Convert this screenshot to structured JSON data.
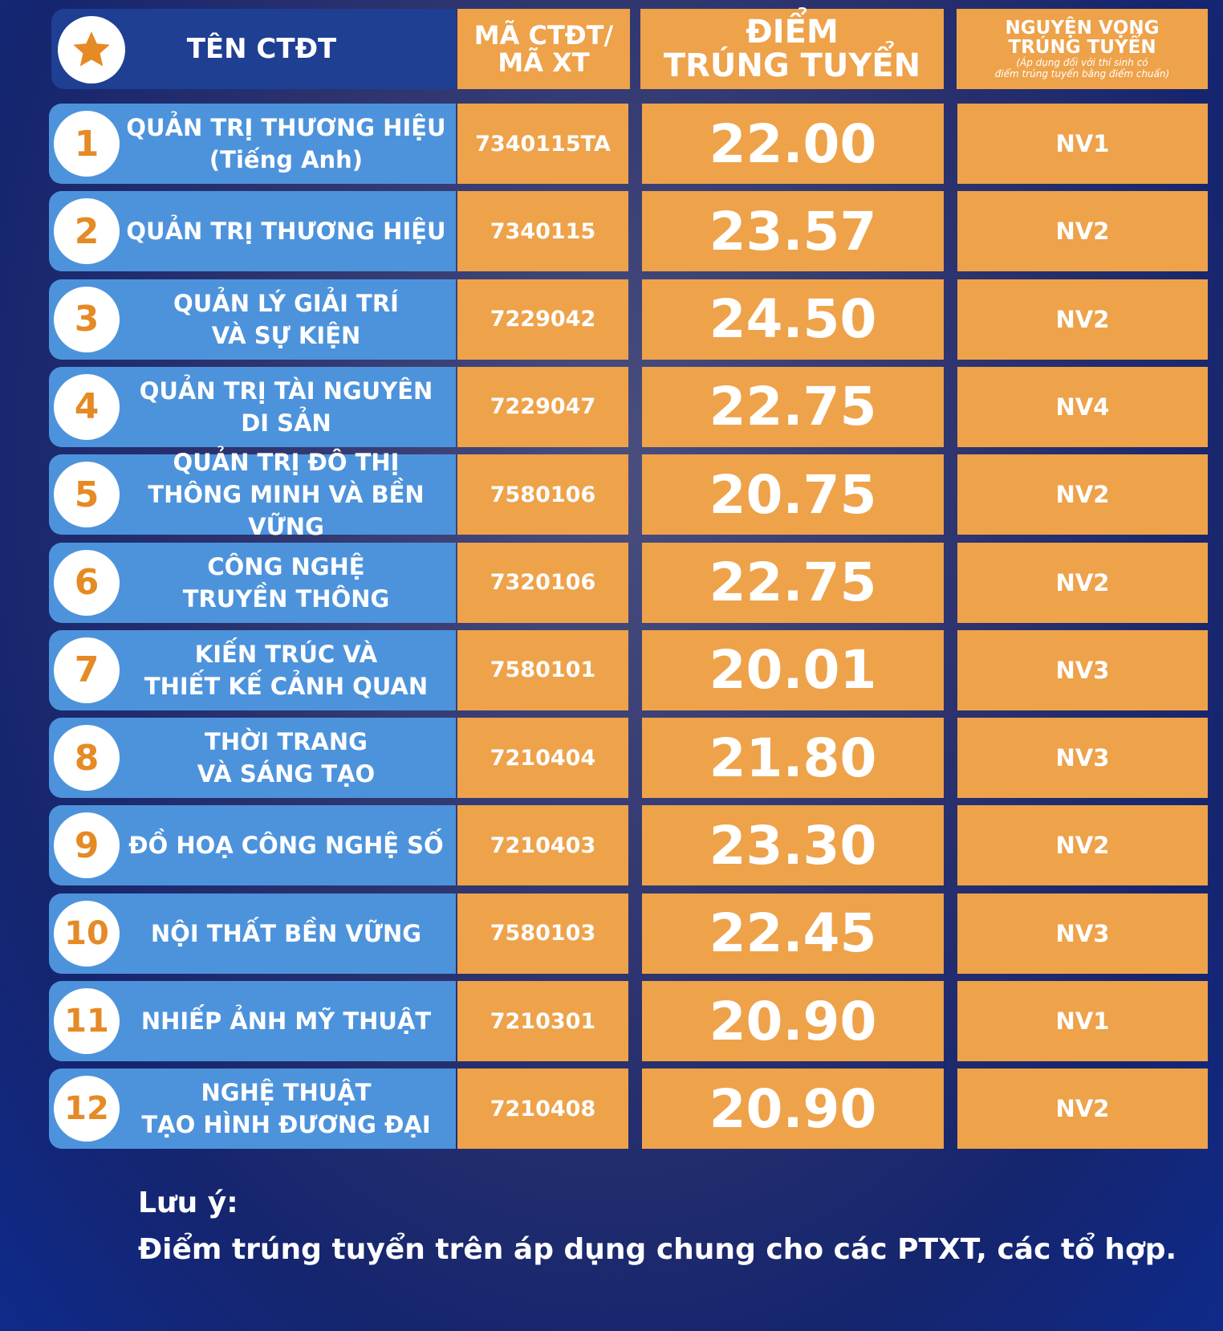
{
  "header": {
    "columns": [
      "TÊN CTĐT",
      [
        "MÃ CTĐT/",
        "MÃ XT"
      ],
      [
        "ĐIỂM",
        "TRÚNG TUYỂN"
      ],
      [
        "NGUYỆN VỌNG",
        "TRÚNG TUYỂN"
      ]
    ],
    "note": [
      "(Áp dụng đối với thí sinh có",
      "điểm trúng tuyển bằng điểm chuẩn)"
    ]
  },
  "table": {
    "rows": [
      {
        "number": "1",
        "name": [
          "QUẢN TRỊ THƯƠNG HIỆU",
          "(Tiếng Anh)"
        ],
        "code": "7340115TA",
        "score": "22.00",
        "nv": "NV1"
      },
      {
        "number": "2",
        "name": [
          "QUẢN TRỊ THƯƠNG HIỆU"
        ],
        "code": "7340115",
        "score": "23.57",
        "nv": "NV2"
      },
      {
        "number": "3",
        "name": [
          "QUẢN LÝ GIẢI TRÍ",
          "VÀ SỰ KIỆN"
        ],
        "code": "7229042",
        "score": "24.50",
        "nv": "NV2"
      },
      {
        "number": "4",
        "name": [
          "QUẢN TRỊ TÀI NGUYÊN",
          "DI SẢN"
        ],
        "code": "7229047",
        "score": "22.75",
        "nv": "NV4"
      },
      {
        "number": "5",
        "name": [
          "QUẢN TRỊ ĐÔ THỊ",
          "THÔNG MINH VÀ BỀN VỮNG"
        ],
        "code": "7580106",
        "score": "20.75",
        "nv": "NV2"
      },
      {
        "number": "6",
        "name": [
          "CÔNG NGHỆ",
          "TRUYỀN THÔNG"
        ],
        "code": "7320106",
        "score": "22.75",
        "nv": "NV2"
      },
      {
        "number": "7",
        "name": [
          "KIẾN TRÚC VÀ",
          "THIẾT KẾ CẢNH QUAN"
        ],
        "code": "7580101",
        "score": "20.01",
        "nv": "NV3"
      },
      {
        "number": "8",
        "name": [
          "THỜI TRANG",
          "VÀ SÁNG TẠO"
        ],
        "code": "7210404",
        "score": "21.80",
        "nv": "NV3"
      },
      {
        "number": "9",
        "name": [
          "ĐỒ HOẠ CÔNG NGHỆ SỐ"
        ],
        "code": "7210403",
        "score": "23.30",
        "nv": "NV2"
      },
      {
        "number": "10",
        "name": [
          "NỘI THẤT BỀN VỮNG"
        ],
        "code": "7580103",
        "score": "22.45",
        "nv": "NV3"
      },
      {
        "number": "11",
        "name": [
          "NHIẾP ẢNH MỸ THUẬT"
        ],
        "code": "7210301",
        "score": "20.90",
        "nv": "NV1"
      },
      {
        "number": "12",
        "name": [
          "NGHỆ THUẬT",
          "TẠO HÌNH ĐƯƠNG ĐẠI"
        ],
        "code": "7210408",
        "score": "20.90",
        "nv": "NV2"
      }
    ]
  },
  "note": {
    "title": "Lưu ý:",
    "text": "Điểm trúng tuyển trên áp dụng chung cho các PTXT, các tổ hợp."
  }
}
